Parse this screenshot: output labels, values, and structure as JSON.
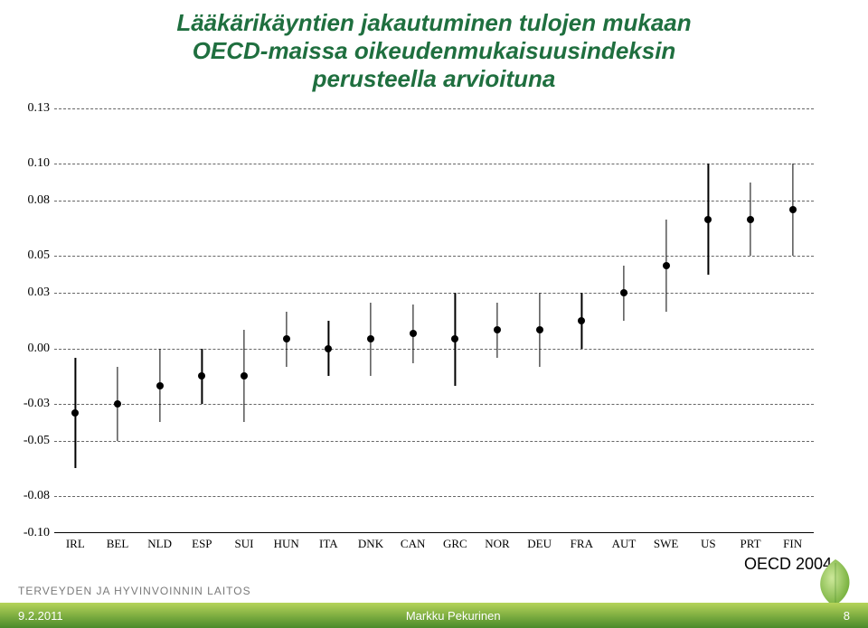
{
  "title": {
    "line1": "Lääkärikäyntien jakautuminen tulojen mukaan",
    "line2": "OECD-maissa oikeudenmukaisuusindeksin",
    "line3": "perusteella arvioituna",
    "color": "#1f6f3f",
    "fontsize": 26
  },
  "chart": {
    "type": "scatter-error",
    "ylim": [
      -0.1,
      0.13
    ],
    "yticks": [
      -0.1,
      -0.08,
      -0.05,
      -0.03,
      0.0,
      0.03,
      0.05,
      0.08,
      0.1,
      0.13
    ],
    "ytick_labels": [
      "-0.10",
      "-0.08",
      "-0.05",
      "-0.03",
      "0.00",
      "0.03",
      "0.05",
      "0.08",
      "0.10",
      "0.13"
    ],
    "ytick_fontsize": 14,
    "grid_color": "#666666",
    "grid_dash": "4,4",
    "axis_color": "#000000",
    "background": "#ffffff",
    "marker_color": "#000000",
    "marker_radius": 4,
    "whisker_color": "#000000",
    "whisker_width": 1.2,
    "categories": [
      "IRL",
      "BEL",
      "NLD",
      "ESP",
      "SUI",
      "HUN",
      "ITA",
      "DNK",
      "CAN",
      "GRC",
      "NOR",
      "DEU",
      "FRA",
      "AUT",
      "SWE",
      "US",
      "PRT",
      "FIN"
    ],
    "xtick_fontsize": 13,
    "points": [
      {
        "label": "IRL",
        "value": -0.035,
        "low": -0.065,
        "high": -0.005
      },
      {
        "label": "BEL",
        "value": -0.03,
        "low": -0.05,
        "high": -0.01
      },
      {
        "label": "NLD",
        "value": -0.02,
        "low": -0.04,
        "high": 0.0
      },
      {
        "label": "ESP",
        "value": -0.015,
        "low": -0.03,
        "high": 0.0
      },
      {
        "label": "SUI",
        "value": -0.015,
        "low": -0.04,
        "high": 0.01
      },
      {
        "label": "HUN",
        "value": 0.005,
        "low": -0.01,
        "high": 0.02
      },
      {
        "label": "ITA",
        "value": 0.0,
        "low": -0.015,
        "high": 0.015
      },
      {
        "label": "DNK",
        "value": 0.005,
        "low": -0.015,
        "high": 0.025
      },
      {
        "label": "CAN",
        "value": 0.008,
        "low": -0.008,
        "high": 0.024
      },
      {
        "label": "GRC",
        "value": 0.005,
        "low": -0.02,
        "high": 0.03
      },
      {
        "label": "NOR",
        "value": 0.01,
        "low": -0.005,
        "high": 0.025
      },
      {
        "label": "DEU",
        "value": 0.01,
        "low": -0.01,
        "high": 0.03
      },
      {
        "label": "FRA",
        "value": 0.015,
        "low": 0.0,
        "high": 0.03
      },
      {
        "label": "AUT",
        "value": 0.03,
        "low": 0.015,
        "high": 0.045
      },
      {
        "label": "SWE",
        "value": 0.045,
        "low": 0.02,
        "high": 0.07
      },
      {
        "label": "US",
        "value": 0.07,
        "low": 0.04,
        "high": 0.1
      },
      {
        "label": "PRT",
        "value": 0.07,
        "low": 0.05,
        "high": 0.09
      },
      {
        "label": "FIN",
        "value": 0.075,
        "low": 0.05,
        "high": 0.1
      }
    ]
  },
  "source": {
    "text": "OECD 2004",
    "fontsize": 18,
    "color": "#000000"
  },
  "institution": {
    "text": "TERVEYDEN JA HYVINVOINNIN LAITOS",
    "color": "#7a7a7a"
  },
  "footer": {
    "date": "9.2.2011",
    "author": "Markku Pekurinen",
    "page": "8",
    "bg_gradient_from": "#b6d45a",
    "bg_gradient_to": "#4a8a2a",
    "text_color": "#ffffff"
  },
  "leaf_icon": {
    "fill": "#7cb342",
    "stroke": "#4a8a2a"
  }
}
